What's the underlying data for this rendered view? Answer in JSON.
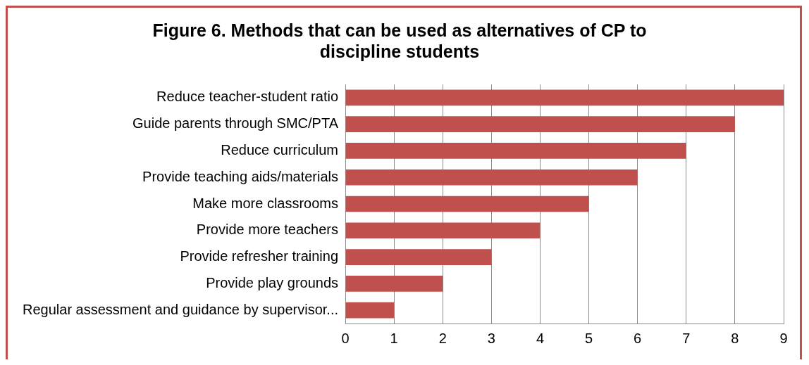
{
  "chart_data": {
    "type": "bar",
    "orientation": "horizontal",
    "title": "Figure 6. Methods that can be used as alternatives of CP to discipline students",
    "categories": [
      "Reduce teacher-student ratio",
      "Guide parents through SMC/PTA",
      "Reduce curriculum",
      "Provide teaching aids/materials",
      "Make more classrooms",
      "Provide more teachers",
      "Provide refresher training",
      "Provide play grounds",
      "Regular assessment and guidance by supervisor..."
    ],
    "values": [
      9,
      8,
      7,
      6,
      5,
      4,
      3,
      2,
      1
    ],
    "color": "#c0504d",
    "xlim": [
      0,
      9
    ],
    "xticks": [
      0,
      1,
      2,
      3,
      4,
      5,
      6,
      7,
      8,
      9
    ],
    "grid": "x",
    "legend": false
  }
}
